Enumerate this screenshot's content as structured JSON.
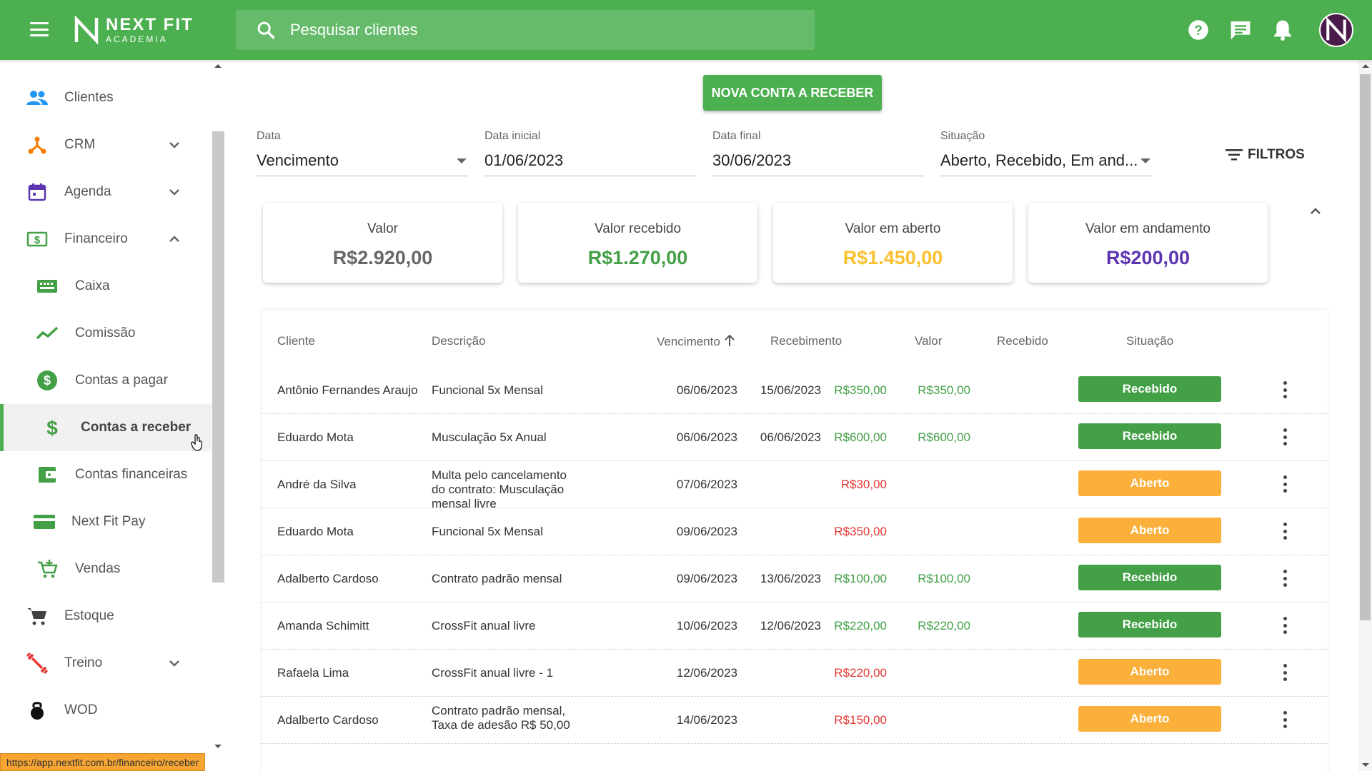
{
  "colors": {
    "brand_green": "#4caf50",
    "value_gray": "#666666",
    "received_green": "#43a047",
    "open_yellow": "#fbc02d",
    "in_progress_purple": "#5e35b1",
    "status_open_orange": "#fbb03b",
    "status_received_green": "#43a047",
    "amount_red": "#e53935"
  },
  "header": {
    "menu_icon": "hamburger-icon",
    "logo_line1": "NEXT FIT",
    "logo_line2": "ACADEMIA",
    "search_placeholder": "Pesquisar clientes",
    "icons": [
      "help-icon",
      "chat-icon",
      "bell-icon"
    ],
    "avatar_icon": "nextfit-avatar"
  },
  "sidebar": {
    "items": [
      {
        "label": "Clientes",
        "icon": "people-icon"
      },
      {
        "label": "CRM",
        "icon": "crm-icon",
        "chevron": "down"
      },
      {
        "label": "Agenda",
        "icon": "calendar-icon",
        "chevron": "down"
      },
      {
        "label": "Financeiro",
        "icon": "money-icon",
        "chevron": "up"
      },
      {
        "label": "Caixa",
        "icon": "cash-register-icon"
      },
      {
        "label": "Comissão",
        "icon": "trend-icon"
      },
      {
        "label": "Contas a pagar",
        "icon": "dollar-circle-icon"
      },
      {
        "label": "Contas a receber",
        "icon": "dollar-icon"
      },
      {
        "label": "Contas financeiras",
        "icon": "wallet-icon"
      },
      {
        "label": "Next Fit Pay",
        "icon": "card-icon"
      },
      {
        "label": "Vendas",
        "icon": "cart-plus-icon"
      },
      {
        "label": "Estoque",
        "icon": "cart-icon"
      },
      {
        "label": "Treino",
        "icon": "dumbbell-icon",
        "chevron": "down"
      },
      {
        "label": "WOD",
        "icon": "kettlebell-icon"
      }
    ],
    "status_url": "https://app.nextfit.com.br/financeiro/receber"
  },
  "main": {
    "new_button": "NOVA CONTA A RECEBER",
    "filters": {
      "data_label": "Data",
      "data_value": "Vencimento",
      "start_label": "Data inicial",
      "start_value": "01/06/2023",
      "end_label": "Data final",
      "end_value": "30/06/2023",
      "status_label": "Situação",
      "status_value": "Aberto, Recebido, Em and...",
      "filters_button": "FILTROS"
    },
    "cards": [
      {
        "title": "Valor",
        "value": "R$2.920,00"
      },
      {
        "title": "Valor recebido",
        "value": "R$1.270,00"
      },
      {
        "title": "Valor em aberto",
        "value": "R$1.450,00"
      },
      {
        "title": "Valor em andamento",
        "value": "R$200,00"
      }
    ],
    "table": {
      "headers": [
        "Cliente",
        "Descrição",
        "Vencimento",
        "Recebimento",
        "Valor",
        "Recebido",
        "Situação"
      ],
      "rows": [
        {
          "cliente": "Antônio Fernandes Araujo",
          "descricao": "Funcional 5x Mensal",
          "vencimento": "06/06/2023",
          "recebimento": "15/06/2023",
          "valor": "R$350,00",
          "recebido": "R$350,00",
          "situacao": "Recebido"
        },
        {
          "cliente": "Eduardo Mota",
          "descricao": "Musculação 5x Anual",
          "vencimento": "06/06/2023",
          "recebimento": "06/06/2023",
          "valor": "R$600,00",
          "recebido": "R$600,00",
          "situacao": "Recebido"
        },
        {
          "cliente": "André da Silva",
          "descricao": "Multa pelo cancelamento do contrato: Musculação mensal livre",
          "vencimento": "07/06/2023",
          "recebimento": "",
          "valor": "R$30,00",
          "recebido": "",
          "situacao": "Aberto"
        },
        {
          "cliente": "Eduardo Mota",
          "descricao": "Funcional 5x Mensal",
          "vencimento": "09/06/2023",
          "recebimento": "",
          "valor": "R$350,00",
          "recebido": "",
          "situacao": "Aberto"
        },
        {
          "cliente": "Adalberto Cardoso",
          "descricao": "Contrato padrão mensal",
          "vencimento": "09/06/2023",
          "recebimento": "13/06/2023",
          "valor": "R$100,00",
          "recebido": "R$100,00",
          "situacao": "Recebido"
        },
        {
          "cliente": "Amanda Schimitt",
          "descricao": "CrossFit anual livre",
          "vencimento": "10/06/2023",
          "recebimento": "12/06/2023",
          "valor": "R$220,00",
          "recebido": "R$220,00",
          "situacao": "Recebido"
        },
        {
          "cliente": "Rafaela Lima",
          "descricao": "CrossFit anual livre - 1",
          "vencimento": "12/06/2023",
          "recebimento": "",
          "valor": "R$220,00",
          "recebido": "",
          "situacao": "Aberto"
        },
        {
          "cliente": "Adalberto Cardoso",
          "descricao": "Contrato padrão mensal, Taxa de adesão R$ 50,00",
          "vencimento": "14/06/2023",
          "recebimento": "",
          "valor": "R$150,00",
          "recebido": "",
          "situacao": "Aberto"
        }
      ]
    }
  }
}
